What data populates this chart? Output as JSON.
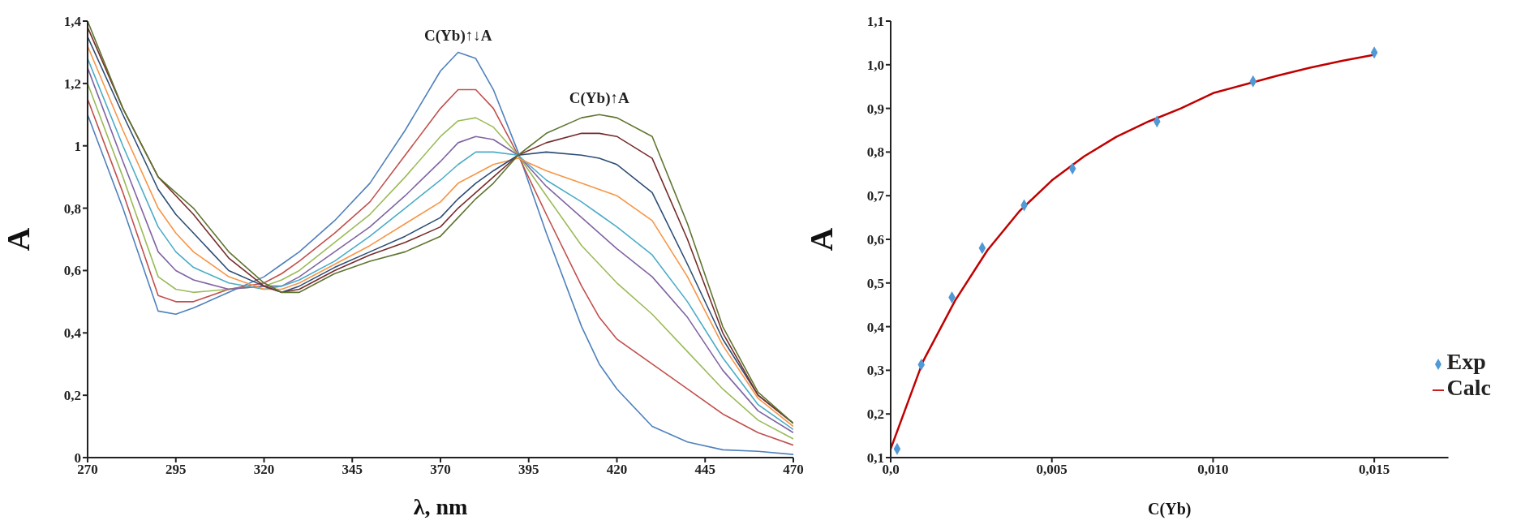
{
  "chart_data": [
    {
      "type": "line",
      "xlabel": "λ, nm",
      "ylabel": "A",
      "grid": false,
      "legend": false,
      "marker": "none",
      "line_style": "solid",
      "x": [
        270,
        280,
        290,
        295,
        300,
        310,
        320,
        325,
        330,
        340,
        350,
        360,
        370,
        375,
        380,
        385,
        392,
        400,
        410,
        415,
        420,
        430,
        440,
        450,
        460,
        470
      ],
      "xlim": [
        270,
        470
      ],
      "xticks": [
        270,
        295,
        320,
        345,
        370,
        395,
        420,
        445,
        470
      ],
      "ylim": [
        0,
        1.4
      ],
      "yticks": [
        0,
        {
          "value": 0.2,
          "label": "0,2"
        },
        {
          "value": 0.4,
          "label": "0,4"
        },
        {
          "value": 0.6,
          "label": "0,6"
        },
        {
          "value": 0.8,
          "label": "0,8"
        },
        1,
        {
          "value": 1.2,
          "label": "1,2"
        },
        {
          "value": 1.4,
          "label": "1,4"
        }
      ],
      "annotations": [
        {
          "text": "C(Yb)↑↓A",
          "x": 375,
          "y": 1.3
        },
        {
          "text": "C(Yb)↑A",
          "x": 415,
          "y": 1.1
        }
      ],
      "series": [
        {
          "color": "#4f81bd",
          "values": [
            1.1,
            0.8,
            0.47,
            0.46,
            0.48,
            0.53,
            0.58,
            0.62,
            0.66,
            0.76,
            0.88,
            1.05,
            1.24,
            1.3,
            1.28,
            1.18,
            0.98,
            0.72,
            0.42,
            0.3,
            0.22,
            0.1,
            0.05,
            0.025,
            0.02,
            0.01
          ]
        },
        {
          "color": "#c0504d",
          "values": [
            1.15,
            0.85,
            0.52,
            0.5,
            0.5,
            0.54,
            0.56,
            0.59,
            0.63,
            0.72,
            0.82,
            0.97,
            1.12,
            1.18,
            1.18,
            1.12,
            0.97,
            0.78,
            0.55,
            0.45,
            0.38,
            0.3,
            0.22,
            0.14,
            0.08,
            0.04
          ]
        },
        {
          "color": "#9bbb59",
          "values": [
            1.2,
            0.9,
            0.58,
            0.54,
            0.53,
            0.54,
            0.55,
            0.57,
            0.6,
            0.69,
            0.78,
            0.9,
            1.03,
            1.08,
            1.09,
            1.06,
            0.97,
            0.84,
            0.68,
            0.62,
            0.56,
            0.46,
            0.34,
            0.22,
            0.12,
            0.06
          ]
        },
        {
          "color": "#8064a2",
          "values": [
            1.25,
            0.95,
            0.66,
            0.6,
            0.57,
            0.54,
            0.55,
            0.55,
            0.58,
            0.66,
            0.74,
            0.84,
            0.95,
            1.01,
            1.03,
            1.02,
            0.97,
            0.87,
            0.77,
            0.72,
            0.67,
            0.58,
            0.45,
            0.28,
            0.15,
            0.08
          ]
        },
        {
          "color": "#4bacc6",
          "values": [
            1.28,
            1.0,
            0.74,
            0.66,
            0.61,
            0.56,
            0.54,
            0.55,
            0.57,
            0.63,
            0.71,
            0.8,
            0.89,
            0.94,
            0.98,
            0.98,
            0.97,
            0.89,
            0.82,
            0.78,
            0.74,
            0.65,
            0.5,
            0.32,
            0.17,
            0.09
          ]
        },
        {
          "color": "#f79646",
          "values": [
            1.32,
            1.05,
            0.8,
            0.72,
            0.66,
            0.58,
            0.54,
            0.54,
            0.56,
            0.62,
            0.68,
            0.75,
            0.82,
            0.88,
            0.91,
            0.94,
            0.96,
            0.92,
            0.88,
            0.86,
            0.84,
            0.76,
            0.58,
            0.36,
            0.19,
            0.1
          ]
        },
        {
          "color": "#2c4d75",
          "values": [
            1.35,
            1.1,
            0.86,
            0.78,
            0.72,
            0.6,
            0.55,
            0.53,
            0.55,
            0.61,
            0.66,
            0.71,
            0.77,
            0.83,
            0.88,
            0.92,
            0.97,
            0.98,
            0.97,
            0.96,
            0.94,
            0.85,
            0.62,
            0.38,
            0.2,
            0.11
          ]
        },
        {
          "color": "#772c2a",
          "values": [
            1.38,
            1.12,
            0.9,
            0.84,
            0.78,
            0.64,
            0.55,
            0.53,
            0.54,
            0.6,
            0.65,
            0.69,
            0.74,
            0.8,
            0.85,
            0.9,
            0.97,
            1.01,
            1.04,
            1.04,
            1.03,
            0.96,
            0.7,
            0.4,
            0.2,
            0.11
          ]
        },
        {
          "color": "#5f7530",
          "values": [
            1.4,
            1.12,
            0.9,
            0.85,
            0.8,
            0.66,
            0.56,
            0.53,
            0.53,
            0.59,
            0.63,
            0.66,
            0.71,
            0.77,
            0.83,
            0.88,
            0.97,
            1.04,
            1.09,
            1.1,
            1.09,
            1.03,
            0.75,
            0.42,
            0.21,
            0.11
          ]
        }
      ]
    },
    {
      "type": "scatter",
      "xlabel": "C(Yb)",
      "ylabel": "A",
      "grid": false,
      "legend": "bottom right",
      "xlim": [
        0,
        0.0173
      ],
      "xticks": [
        {
          "value": 0,
          "label": "0,0"
        },
        {
          "value": 0.005,
          "label": "0,005"
        },
        {
          "value": 0.01,
          "label": "0,010"
        },
        {
          "value": 0.015,
          "label": "0,015"
        }
      ],
      "ylim": [
        0.1,
        1.1
      ],
      "yticks": [
        {
          "value": 0.1,
          "label": "0,1"
        },
        {
          "value": 0.2,
          "label": "0,2"
        },
        {
          "value": 0.3,
          "label": "0,3"
        },
        {
          "value": 0.4,
          "label": "0,4"
        },
        {
          "value": 0.5,
          "label": "0,5"
        },
        {
          "value": 0.6,
          "label": "0,6"
        },
        {
          "value": 0.7,
          "label": "0,7"
        },
        {
          "value": 0.8,
          "label": "0,8"
        },
        {
          "value": 0.9,
          "label": "0,9"
        },
        {
          "value": 1.0,
          "label": "1,0"
        },
        {
          "value": 1.1,
          "label": "1,1"
        }
      ],
      "series": [
        {
          "name": "Exp",
          "marker": "diamond",
          "color": "#4f9ad6",
          "x": [
            0.0002,
            0.00095,
            0.0019,
            0.00284,
            0.00414,
            0.00564,
            0.00826,
            0.01124,
            0.015
          ],
          "values": [
            0.12,
            0.313,
            0.467,
            0.58,
            0.678,
            0.762,
            0.87,
            0.962,
            1.028
          ]
        },
        {
          "name": "Calc",
          "type": "line",
          "marker": "none",
          "color": "#c00000",
          "x": [
            0,
            0.0005,
            0.001,
            0.002,
            0.003,
            0.004,
            0.005,
            0.006,
            0.007,
            0.008,
            0.009,
            0.01,
            0.011,
            0.012,
            0.013,
            0.014,
            0.015
          ],
          "values": [
            0.12,
            0.22,
            0.32,
            0.46,
            0.575,
            0.665,
            0.735,
            0.79,
            0.835,
            0.87,
            0.9,
            0.935,
            0.955,
            0.975,
            0.993,
            1.009,
            1.023
          ]
        }
      ]
    }
  ]
}
